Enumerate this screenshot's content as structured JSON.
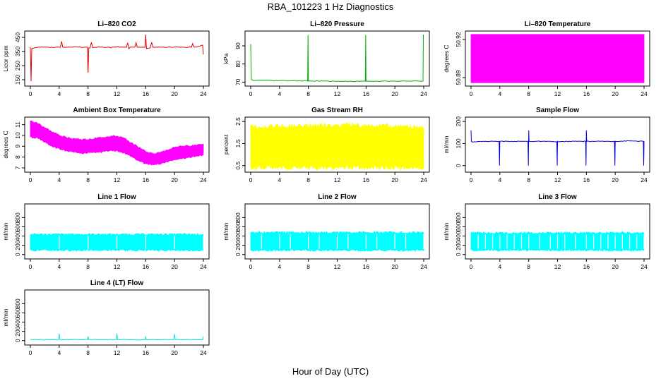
{
  "figure": {
    "title": "RBA_101223  1 Hz Diagnostics",
    "xlabel": "Hour of Day (UTC)"
  },
  "chart_data": [
    {
      "type": "line",
      "title": "Li–820 CO2",
      "ylabel": "Licor ppm",
      "color": "#e00000",
      "xlim": [
        0,
        24
      ],
      "ylim": [
        120,
        480
      ],
      "yticks": [
        150,
        250,
        350,
        450
      ],
      "xticks": [
        0,
        4,
        8,
        12,
        16,
        20,
        24
      ],
      "series": [
        {
          "x": [
            0,
            0.1,
            0.2,
            0.5,
            1,
            2,
            3,
            4,
            5,
            6,
            7,
            7.9,
            8,
            8.1,
            9,
            10,
            11,
            12,
            13,
            14,
            15,
            15.9,
            16,
            16.1,
            17,
            18,
            19,
            20,
            21,
            22,
            23,
            23.9,
            24
          ],
          "y": [
            380,
            140,
            370,
            375,
            380,
            382,
            380,
            381,
            380,
            383,
            380,
            380,
            200,
            375,
            380,
            381,
            380,
            383,
            380,
            381,
            380,
            380,
            470,
            370,
            380,
            381,
            380,
            382,
            381,
            380,
            382,
            395,
            330
          ]
        }
      ]
    },
    {
      "type": "line",
      "title": "Li–820 Pressure",
      "ylabel": "kPa",
      "color": "#00b000",
      "xlim": [
        0,
        24
      ],
      "ylim": [
        69,
        97
      ],
      "yticks": [
        70,
        80,
        90
      ],
      "xticks": [
        0,
        4,
        8,
        12,
        16,
        20,
        24
      ],
      "series": [
        {
          "x": [
            0,
            0.05,
            0.1,
            0.3,
            2,
            4,
            6,
            7.9,
            7.95,
            8.0,
            8.05,
            10,
            12,
            14,
            15.9,
            15.95,
            16.0,
            16.05,
            18,
            20,
            22,
            23.9,
            23.95,
            24.0
          ],
          "y": [
            91,
            80,
            71.5,
            71,
            71,
            70.8,
            70.8,
            70.6,
            96,
            70.6,
            70.6,
            70.6,
            70.5,
            70.5,
            70.5,
            96,
            70.5,
            70.5,
            70.5,
            70.6,
            70.6,
            70.6,
            96,
            96
          ]
        }
      ]
    },
    {
      "type": "area",
      "title": "Li–820 Temperature",
      "ylabel": "degrees C",
      "color": "#ff00ff",
      "xlim": [
        0,
        24
      ],
      "ylim": [
        50.885,
        50.925
      ],
      "yticks": [
        50.89,
        50.92
      ],
      "xticks": [
        0,
        4,
        8,
        12,
        16,
        20,
        24
      ],
      "band": {
        "x": [
          0,
          24
        ],
        "low": [
          50.886,
          50.886
        ],
        "high": [
          50.924,
          50.924
        ]
      }
    },
    {
      "type": "area",
      "title": "Ambient Box Temperature",
      "ylabel": "degrees C",
      "color": "#ff00ff",
      "xlim": [
        0,
        24
      ],
      "ylim": [
        6.8,
        11.5
      ],
      "yticks": [
        7,
        8,
        9,
        10,
        11
      ],
      "xticks": [
        0,
        4,
        8,
        12,
        16,
        20,
        24
      ],
      "band": {
        "x": [
          0,
          1,
          2,
          3,
          4,
          5,
          6,
          7,
          8,
          9,
          10,
          11,
          12,
          13,
          14,
          15,
          16,
          17,
          18,
          19,
          20,
          21,
          22,
          23,
          24
        ],
        "low": [
          9.9,
          9.8,
          9.4,
          9.0,
          8.8,
          8.6,
          8.5,
          8.4,
          8.4,
          8.5,
          8.5,
          8.6,
          8.6,
          8.4,
          8.1,
          7.7,
          7.4,
          7.3,
          7.4,
          7.6,
          7.8,
          7.9,
          8.0,
          8.1,
          8.2
        ],
        "high": [
          11.3,
          11.1,
          10.7,
          10.3,
          10.0,
          9.8,
          9.7,
          9.6,
          9.6,
          9.7,
          9.8,
          9.9,
          9.9,
          9.7,
          9.3,
          8.9,
          8.5,
          8.3,
          8.4,
          8.6,
          8.9,
          9.0,
          9.0,
          9.1,
          9.2
        ]
      }
    },
    {
      "type": "area",
      "title": "Gas Stream RH",
      "ylabel": "percent",
      "color": "#ffff00",
      "xlim": [
        0,
        24
      ],
      "ylim": [
        0.3,
        2.6
      ],
      "yticks": [
        0.5,
        1.5,
        2.5
      ],
      "xticks": [
        0,
        4,
        8,
        12,
        16,
        20,
        24
      ],
      "band": {
        "x": [
          0,
          6,
          12,
          18,
          24
        ],
        "low": [
          0.45,
          0.45,
          0.45,
          0.45,
          0.45
        ],
        "high": [
          2.2,
          2.25,
          2.3,
          2.25,
          2.2
        ]
      }
    },
    {
      "type": "line",
      "title": "Sample Flow",
      "ylabel": "ml/min",
      "color": "#0000e0",
      "xlim": [
        0,
        24
      ],
      "ylim": [
        -20,
        210
      ],
      "yticks": [
        0,
        100,
        200
      ],
      "xticks": [
        0,
        4,
        8,
        12,
        16,
        20,
        24
      ],
      "series": [
        {
          "x": [
            0,
            0.05,
            0.1,
            2,
            3.9,
            3.95,
            4.0,
            4.05,
            6,
            7.9,
            7.95,
            8.0,
            8.05,
            10,
            11.9,
            11.95,
            12.0,
            12.05,
            14,
            15.9,
            15.95,
            16.0,
            16.05,
            18,
            19.9,
            19.95,
            20.0,
            20.05,
            22,
            23.9,
            23.95,
            24.0
          ],
          "y": [
            160,
            110,
            108,
            110,
            110,
            0,
            108,
            110,
            110,
            110,
            0,
            160,
            110,
            110,
            108,
            0,
            110,
            108,
            110,
            110,
            0,
            160,
            110,
            110,
            110,
            0,
            110,
            110,
            112,
            110,
            0,
            110
          ]
        }
      ]
    },
    {
      "type": "area",
      "title": "Line 1 Flow",
      "ylabel": "ml/min",
      "color": "#00ffff",
      "xlim": [
        0,
        24
      ],
      "ylim": [
        -50,
        1050
      ],
      "yticks": [
        0,
        200,
        400,
        600,
        800
      ],
      "xticks": [
        0,
        4,
        8,
        12,
        16,
        20,
        24
      ],
      "band": {
        "x": [
          0,
          24
        ],
        "low": [
          100,
          100
        ],
        "high": [
          430,
          430
        ]
      }
    },
    {
      "type": "area",
      "title": "Line 2 Flow",
      "ylabel": "ml/min",
      "color": "#00ffff",
      "xlim": [
        0,
        24
      ],
      "ylim": [
        -50,
        1050
      ],
      "yticks": [
        0,
        200,
        400,
        600,
        800
      ],
      "xticks": [
        0,
        4,
        8,
        12,
        16,
        20,
        24
      ],
      "band": {
        "x": [
          0,
          24
        ],
        "low": [
          100,
          100
        ],
        "high": [
          470,
          470
        ]
      }
    },
    {
      "type": "area",
      "title": "Line 3 Flow",
      "ylabel": "ml/min",
      "color": "#00ffff",
      "xlim": [
        0,
        24
      ],
      "ylim": [
        -50,
        1050
      ],
      "yticks": [
        0,
        200,
        400,
        600,
        800
      ],
      "xticks": [
        0,
        4,
        8,
        12,
        16,
        20,
        24
      ],
      "band": {
        "x": [
          0,
          24
        ],
        "low": [
          100,
          100
        ],
        "high": [
          460,
          460
        ]
      }
    },
    {
      "type": "line",
      "title": "Line 4 (LT) Flow",
      "ylabel": "ml/min",
      "color": "#00e5e5",
      "xlim": [
        0,
        24
      ],
      "ylim": [
        -50,
        1050
      ],
      "yticks": [
        0,
        200,
        400,
        600,
        800
      ],
      "xticks": [
        0,
        4,
        8,
        12,
        16,
        20,
        24
      ],
      "series": [
        {
          "x": [
            0,
            3.9,
            4.0,
            4.1,
            7.9,
            8.0,
            8.1,
            11.9,
            12.0,
            12.1,
            15.9,
            16.0,
            16.1,
            19.9,
            20.0,
            20.1,
            23.9,
            24.0
          ],
          "y": [
            20,
            20,
            150,
            20,
            20,
            90,
            20,
            20,
            150,
            20,
            20,
            80,
            20,
            20,
            140,
            20,
            20,
            90
          ]
        }
      ]
    }
  ]
}
